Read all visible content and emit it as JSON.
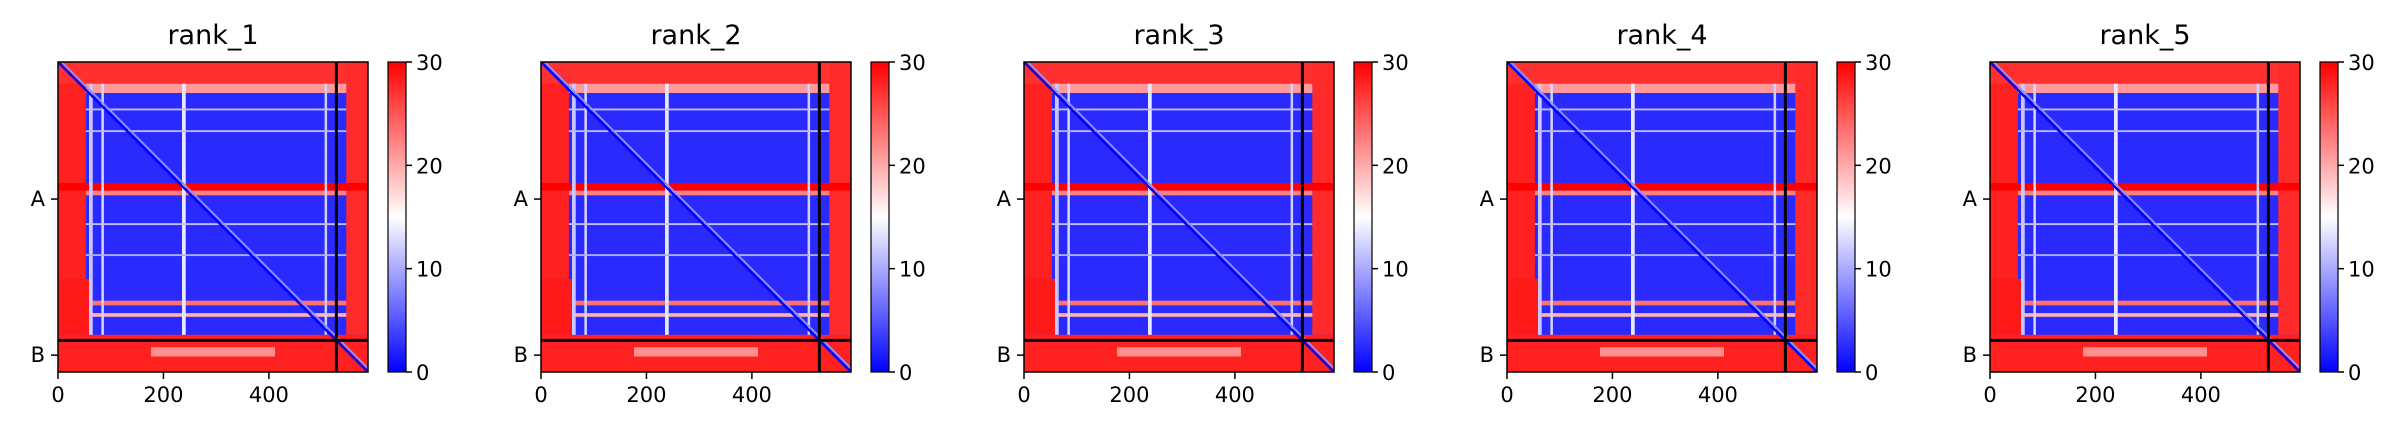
{
  "chart_data": [
    {
      "type": "heatmap",
      "title": "rank_1",
      "xlabel": "",
      "ylabel": "",
      "x_ticks": [
        0,
        200,
        400
      ],
      "xlim": [
        0,
        588
      ],
      "chain_labels": [
        "A",
        "B"
      ],
      "chain_label_positions": [
        260,
        556
      ],
      "chain_boundary": 528,
      "colorbar": {
        "min": 0,
        "max": 30,
        "ticks": [
          0,
          10,
          20,
          30
        ]
      },
      "colorscale": [
        "#0000ff",
        "#ffffff",
        "#ff0000"
      ]
    },
    {
      "type": "heatmap",
      "title": "rank_2",
      "xlabel": "",
      "ylabel": "",
      "x_ticks": [
        0,
        200,
        400
      ],
      "xlim": [
        0,
        588
      ],
      "chain_labels": [
        "A",
        "B"
      ],
      "chain_label_positions": [
        260,
        556
      ],
      "chain_boundary": 528,
      "colorbar": {
        "min": 0,
        "max": 30,
        "ticks": [
          0,
          10,
          20,
          30
        ]
      },
      "colorscale": [
        "#0000ff",
        "#ffffff",
        "#ff0000"
      ]
    },
    {
      "type": "heatmap",
      "title": "rank_3",
      "xlabel": "",
      "ylabel": "",
      "x_ticks": [
        0,
        200,
        400
      ],
      "xlim": [
        0,
        588
      ],
      "chain_labels": [
        "A",
        "B"
      ],
      "chain_label_positions": [
        260,
        556
      ],
      "chain_boundary": 528,
      "colorbar": {
        "min": 0,
        "max": 30,
        "ticks": [
          0,
          10,
          20,
          30
        ]
      },
      "colorscale": [
        "#0000ff",
        "#ffffff",
        "#ff0000"
      ]
    },
    {
      "type": "heatmap",
      "title": "rank_4",
      "xlabel": "",
      "ylabel": "",
      "x_ticks": [
        0,
        200,
        400
      ],
      "xlim": [
        0,
        588
      ],
      "chain_labels": [
        "A",
        "B"
      ],
      "chain_label_positions": [
        260,
        556
      ],
      "chain_boundary": 528,
      "colorbar": {
        "min": 0,
        "max": 30,
        "ticks": [
          0,
          10,
          20,
          30
        ]
      },
      "colorscale": [
        "#0000ff",
        "#ffffff",
        "#ff0000"
      ]
    },
    {
      "type": "heatmap",
      "title": "rank_5",
      "xlabel": "",
      "ylabel": "",
      "x_ticks": [
        0,
        200,
        400
      ],
      "xlim": [
        0,
        588
      ],
      "chain_labels": [
        "A",
        "B"
      ],
      "chain_label_positions": [
        260,
        556
      ],
      "chain_boundary": 528,
      "colorbar": {
        "min": 0,
        "max": 30,
        "ticks": [
          0,
          10,
          20,
          30
        ]
      },
      "colorscale": [
        "#0000ff",
        "#ffffff",
        "#ff0000"
      ]
    }
  ]
}
